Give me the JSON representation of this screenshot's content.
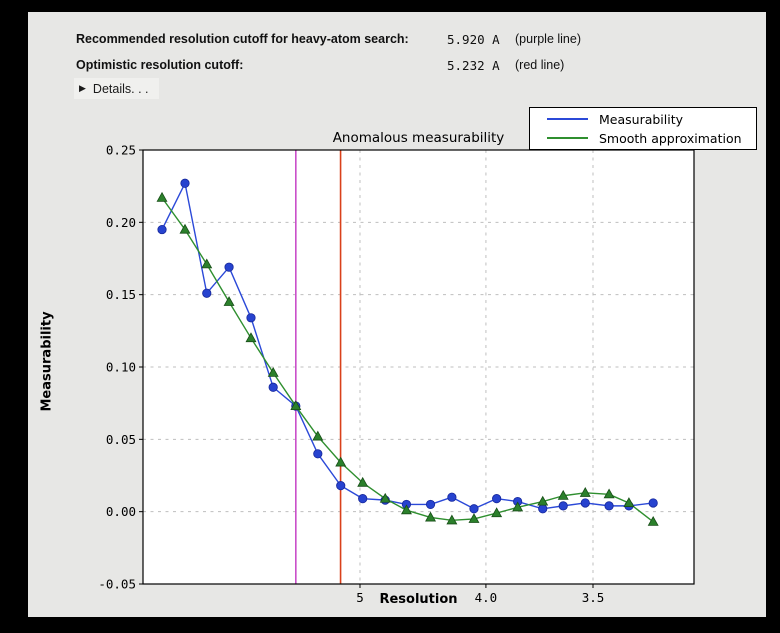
{
  "window": {
    "background": "#e7e7e5",
    "header": {
      "rows": [
        {
          "label": "Recommended resolution cutoff for heavy-atom search:",
          "value": "5.920 A",
          "note": "(purple line)"
        },
        {
          "label": "Optimistic resolution cutoff:",
          "value": "5.232 A",
          "note": "(red line)"
        }
      ],
      "details": {
        "arrow": "▶",
        "label": "Details. . ."
      }
    }
  },
  "chart_data": {
    "type": "line",
    "title": "Anomalous measurability",
    "xlabel": "Resolution",
    "ylabel": "Measurability",
    "x_scale": "inverse_d_squared",
    "grid": true,
    "legend_position": "upper right",
    "plot_bg": "#ffffff",
    "grid_color": "#bfbfbf",
    "frame_color": "#000000",
    "x_axis": {
      "tick_values": [
        5,
        4,
        3.5
      ],
      "tick_labels": [
        "5",
        "4.0",
        "3.5"
      ],
      "inv_d2_range": [
        0.00123,
        0.09968
      ]
    },
    "y_axis": {
      "tick_values": [
        0.25,
        0.2,
        0.15,
        0.1,
        0.05,
        0.0,
        -0.05
      ],
      "tick_labels": [
        "0.25",
        "0.20",
        "0.15",
        "0.10",
        "0.05",
        "0.00",
        "-0.05"
      ],
      "range": [
        -0.05,
        0.25
      ]
    },
    "x_resolution_A": [
      14.7,
      10.7,
      8.9,
      7.76,
      6.98,
      6.39,
      5.92,
      5.55,
      5.23,
      4.97,
      4.74,
      4.55,
      4.36,
      4.21,
      4.07,
      3.94,
      3.83,
      3.71,
      3.62,
      3.53,
      3.44,
      3.37,
      3.29
    ],
    "series": [
      {
        "name": "Measurability",
        "color": "#2b49d8",
        "marker": "circle",
        "marker_fill": "#2743cf",
        "marker_edge": "#16279b",
        "values": [
          0.195,
          0.227,
          0.151,
          0.169,
          0.134,
          0.086,
          0.073,
          0.04,
          0.018,
          0.009,
          0.008,
          0.005,
          0.005,
          0.01,
          0.002,
          0.009,
          0.007,
          0.002,
          0.004,
          0.006,
          0.004,
          0.004,
          0.006
        ]
      },
      {
        "name": "Smooth approximation",
        "color": "#2f8f2f",
        "marker": "triangle",
        "marker_fill": "#2b802b",
        "marker_edge": "#174d17",
        "values": [
          0.217,
          0.195,
          0.171,
          0.145,
          0.12,
          0.096,
          0.073,
          0.052,
          0.034,
          0.02,
          0.009,
          0.001,
          -0.004,
          -0.006,
          -0.005,
          -0.001,
          0.003,
          0.007,
          0.011,
          0.013,
          0.012,
          0.006,
          -0.007
        ]
      }
    ],
    "vlines": [
      {
        "resolution_A": 5.92,
        "color": "#c94fc9",
        "name": "purple line"
      },
      {
        "resolution_A": 5.232,
        "color": "#d9401a",
        "name": "red line"
      }
    ]
  }
}
